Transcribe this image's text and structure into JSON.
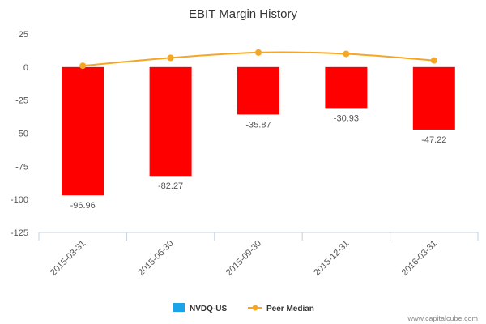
{
  "chart_data": {
    "type": "bar",
    "title": "EBIT Margin History",
    "categories": [
      "2015-03-31",
      "2015-06-30",
      "2015-09-30",
      "2015-12-31",
      "2016-03-31"
    ],
    "series": [
      {
        "name": "NVDQ-US",
        "type": "bar",
        "values": [
          -96.96,
          -82.27,
          -35.87,
          -30.93,
          -47.22
        ],
        "color": "#ff0000",
        "legend_color": "#1aa3e8"
      },
      {
        "name": "Peer Median",
        "type": "line",
        "values": [
          1,
          7,
          11,
          10,
          5
        ],
        "color": "#f5a623"
      }
    ],
    "data_labels": [
      "-96.96",
      "-82.27",
      "-35.87",
      "-30.93",
      "-47.22"
    ],
    "y_ticks": [
      "25",
      "0",
      "-25",
      "-50",
      "-75",
      "-100",
      "-125"
    ],
    "ylim": [
      -125,
      25
    ],
    "grid": false,
    "legend_position": "bottom-center"
  },
  "credit": "www.capitalcube.com"
}
